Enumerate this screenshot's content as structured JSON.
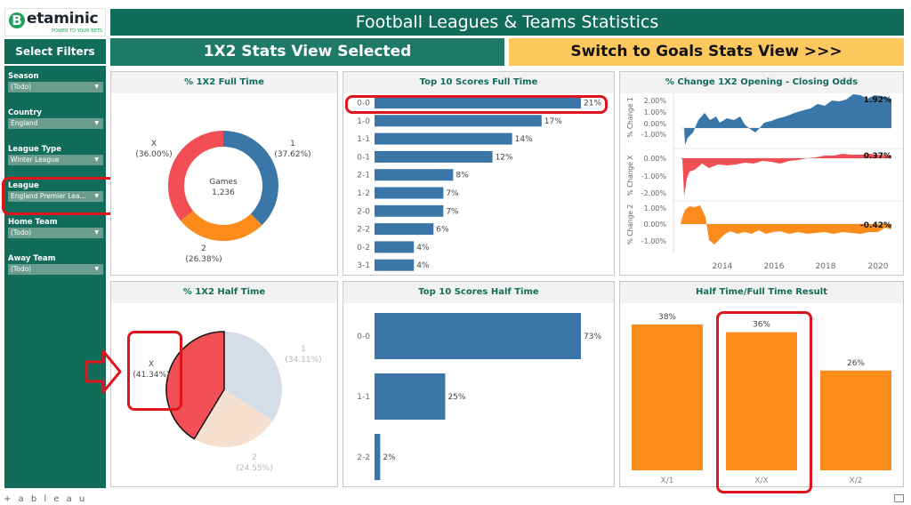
{
  "logo": {
    "letter": "B",
    "name": "etaminic",
    "tagline": "POWER TO YOUR BETS"
  },
  "title": "Football Leagues & Teams Statistics",
  "sidebar": {
    "heading": "Select Filters",
    "filters": [
      {
        "label": "Season",
        "value": "(Todo)"
      },
      {
        "label": "Country",
        "value": "England"
      },
      {
        "label": "League Type",
        "value": "Winter League"
      },
      {
        "label": "League",
        "value": "England Premier Lea..."
      },
      {
        "label": "Home Team",
        "value": "(Todo)"
      },
      {
        "label": "Away Team",
        "value": "(Todo)"
      }
    ]
  },
  "views": {
    "selected": "1X2 Stats View Selected",
    "switch": "Switch to Goals Stats View >>>"
  },
  "panels": {
    "ft1x2": {
      "title": "% 1X2 Full Time"
    },
    "top10ft": {
      "title": "Top 10 Scores Full Time"
    },
    "odds": {
      "title": "% Change 1X2 Opening - Closing Odds"
    },
    "ht1x2": {
      "title": "% 1X2 Half Time"
    },
    "top10ht": {
      "title": "Top 10 Scores Half Time"
    },
    "htft": {
      "title": "Half Time/Full Time Result"
    }
  },
  "donut_center": {
    "label": "Games",
    "value": "1,236"
  },
  "colors": {
    "home": "#3a77a8",
    "draw": "#f14f55",
    "away": "#fb8b1a",
    "bar": "#3a77a8",
    "orange": "#fb8b1a",
    "green": "#116d59"
  },
  "chart_data": [
    {
      "type": "pie",
      "title": "% 1X2 Full Time",
      "slices": [
        {
          "label": "1",
          "pct_label": "(37.62%)",
          "value": 37.62
        },
        {
          "label": "2",
          "pct_label": "(26.38%)",
          "value": 26.38
        },
        {
          "label": "X",
          "pct_label": "(36.00%)",
          "value": 36.0
        }
      ]
    },
    {
      "type": "bar",
      "title": "Top 10 Scores Full Time",
      "categories": [
        "0-0",
        "1-0",
        "1-1",
        "0-1",
        "2-1",
        "1-2",
        "2-0",
        "2-2",
        "0-2",
        "3-1"
      ],
      "values": [
        21,
        17,
        14,
        12,
        8,
        7,
        7,
        6,
        4,
        4
      ],
      "value_labels": [
        "21%",
        "17%",
        "14%",
        "12%",
        "8%",
        "7%",
        "7%",
        "6%",
        "4%",
        "4%"
      ]
    },
    {
      "type": "area",
      "title": "% Change 1X2 Opening - Closing Odds",
      "x_ticks": [
        "2014",
        "2016",
        "2018",
        "2020"
      ],
      "series": [
        {
          "ylabel": "% Change 1",
          "ticks": [
            "2.00%",
            "1.00%",
            "0.00%",
            "-1.00%"
          ],
          "last_label": "1.92%"
        },
        {
          "ylabel": "% Change X",
          "ticks": [
            "0.00%",
            "-1.00%",
            "-2.00%"
          ],
          "last_label": "0.37%"
        },
        {
          "ylabel": "% Change 2",
          "ticks": [
            "1.00%",
            "0.00%",
            "-1.00%"
          ],
          "last_label": "-0.42%"
        }
      ]
    },
    {
      "type": "pie",
      "title": "% 1X2 Half Time",
      "slices": [
        {
          "label": "1",
          "pct_label": "(34.11%)",
          "value": 34.11
        },
        {
          "label": "2",
          "pct_label": "(24.55%)",
          "value": 24.55
        },
        {
          "label": "X",
          "pct_label": "(41.34%)",
          "value": 41.34
        }
      ]
    },
    {
      "type": "bar",
      "title": "Top 10 Scores Half Time",
      "categories": [
        "0-0",
        "1-1",
        "2-2"
      ],
      "values": [
        73,
        25,
        2
      ],
      "value_labels": [
        "73%",
        "25%",
        "2%"
      ]
    },
    {
      "type": "bar",
      "title": "Half Time/Full Time Result",
      "categories": [
        "X/1",
        "X/X",
        "X/2"
      ],
      "values": [
        38,
        36,
        26
      ],
      "value_labels": [
        "38%",
        "36%",
        "26%"
      ]
    }
  ],
  "footer": {
    "brand": "+ a b l e a u"
  }
}
